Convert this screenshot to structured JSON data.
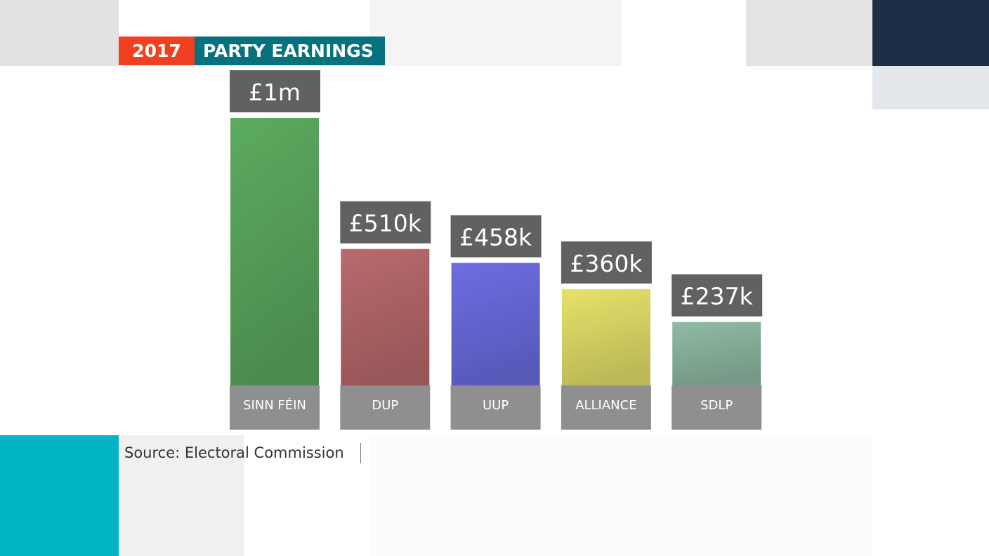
{
  "header": {
    "year": "2017",
    "title": "PARTY EARNINGS"
  },
  "source": "Source: Electoral Commission",
  "chart_data": {
    "type": "bar",
    "title": "PARTY EARNINGS",
    "categories": [
      "SINN FÉIN",
      "DUP",
      "UUP",
      "ALLIANCE",
      "SDLP"
    ],
    "values": [
      1000000,
      510000,
      458000,
      360000,
      237000
    ],
    "data_labels": [
      "£1m",
      "£510k",
      "£458k",
      "£360k",
      "£237k"
    ],
    "colors": [
      "#5cab5f",
      "#b96a6c",
      "#6d6de3",
      "#e6e26a",
      "#8fbba4"
    ],
    "xlabel": "",
    "ylabel": "",
    "ylim": [
      0,
      1000000
    ],
    "grid": false
  }
}
